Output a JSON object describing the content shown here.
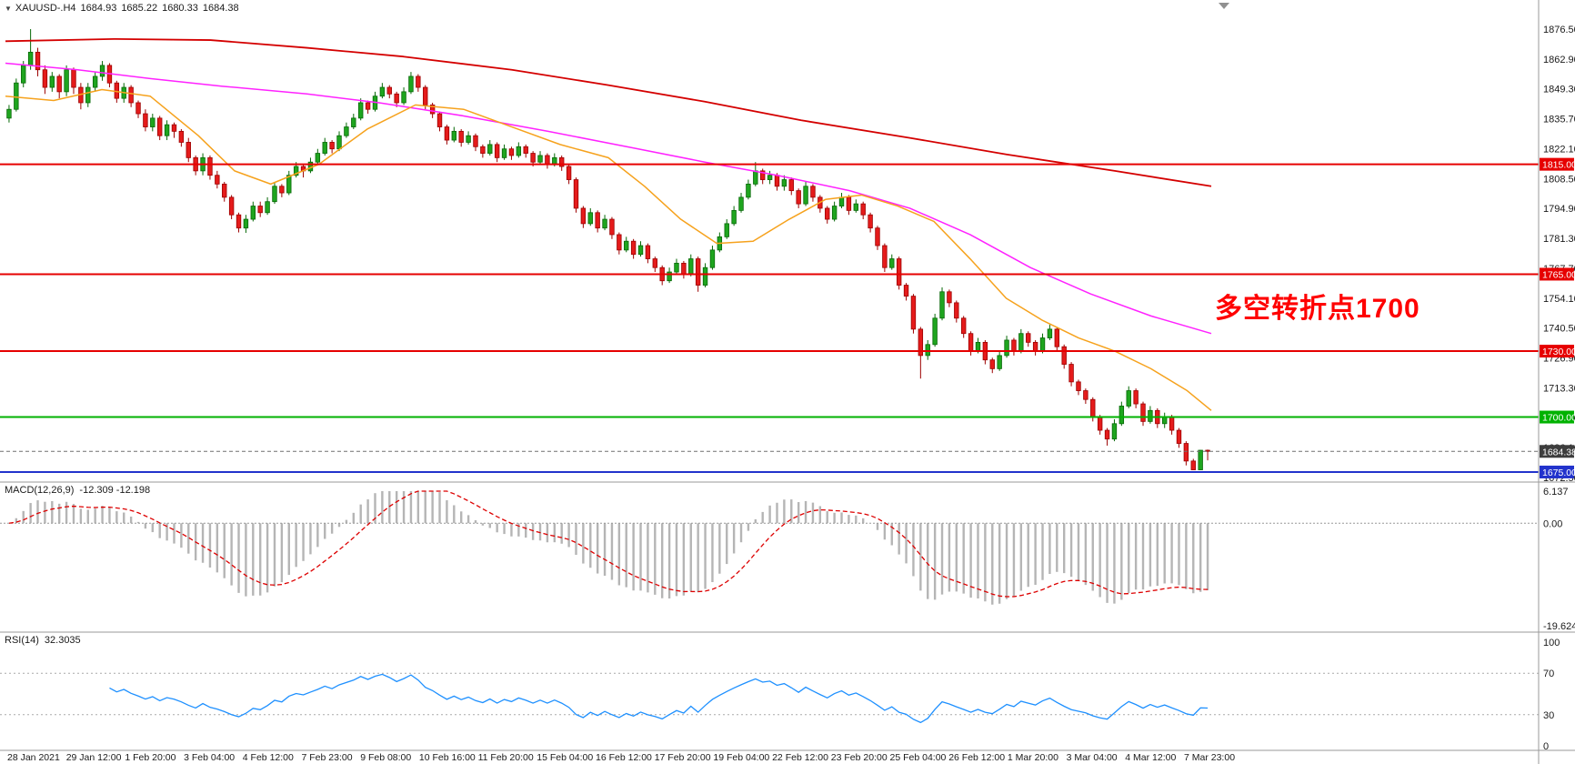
{
  "header": {
    "dropdown_icon": "▼",
    "symbol": "XAUUSD-.H4",
    "open": "1684.93",
    "high": "1685.22",
    "low": "1680.33",
    "close": "1684.38"
  },
  "chart_data": {
    "type": "candlestick",
    "symbol": "XAUUSD",
    "timeframe": "H4",
    "title": "XAUUSD-.H4 1684.93 1685.22 1680.33 1684.38",
    "colors": {
      "up_fill": "#1fa51f",
      "up_stroke": "#066806",
      "down_fill": "#e51b1b",
      "down_stroke": "#9c0000",
      "grid_text": "#1a1a1a",
      "separator": "#9a9a9a",
      "macd_bar": "#b5b5b5",
      "macd_signal": "#dd0000",
      "rsi_line": "#1e90ff",
      "bid_line": "#707070",
      "bid_badge": "#3d3d3d"
    },
    "y_axis": {
      "max": 1876.5,
      "min": 1672.5,
      "labels": [
        "1876.50",
        "1862.90",
        "1849.30",
        "1835.70",
        "1822.10",
        "1808.50",
        "1794.90",
        "1781.30",
        "1767.70",
        "1754.10",
        "1740.50",
        "1726.90",
        "1713.30",
        "1699.70",
        "1686.10",
        "1672.50"
      ]
    },
    "x_labels": [
      "28 Jan 2021",
      "29 Jan 12:00",
      "1 Feb 20:00",
      "3 Feb 04:00",
      "4 Feb 12:00",
      "7 Feb 23:00",
      "9 Feb 08:00",
      "10 Feb 16:00",
      "11 Feb 20:00",
      "15 Feb 04:00",
      "16 Feb 12:00",
      "17 Feb 20:00",
      "19 Feb 04:00",
      "22 Feb 12:00",
      "23 Feb 20:00",
      "25 Feb 04:00",
      "26 Feb 12:00",
      "1 Mar 20:00",
      "3 Mar 04:00",
      "4 Mar 12:00",
      "7 Mar 23:00"
    ],
    "levels": [
      {
        "price": 1815.0,
        "label": "1815.00",
        "color": "#e60000"
      },
      {
        "price": 1765.0,
        "label": "1765.00",
        "color": "#e60000"
      },
      {
        "price": 1730.0,
        "label": "1730.00",
        "color": "#e60000"
      },
      {
        "price": 1700.0,
        "label": "1700.00",
        "color": "#00b200"
      },
      {
        "price": 1675.0,
        "label": "1675.00",
        "color": "#2233cc"
      }
    ],
    "bid": {
      "price": 1684.38,
      "label": "1684.38"
    },
    "annotation": {
      "text": "多空转折点1700",
      "color": "#ff0000"
    },
    "moving_averages": [
      {
        "name": "slow",
        "color": "#d40000",
        "width": 1.8,
        "points": [
          [
            0,
            1871
          ],
          [
            0.09,
            1872
          ],
          [
            0.17,
            1871.5
          ],
          [
            0.25,
            1868
          ],
          [
            0.33,
            1864
          ],
          [
            0.42,
            1858
          ],
          [
            0.5,
            1851
          ],
          [
            0.58,
            1843.5
          ],
          [
            0.66,
            1835
          ],
          [
            0.75,
            1827
          ],
          [
            0.83,
            1819.5
          ],
          [
            0.92,
            1812
          ],
          [
            1,
            1805
          ]
        ]
      },
      {
        "name": "mid",
        "color": "#ff22ff",
        "width": 1.5,
        "points": [
          [
            0,
            1861
          ],
          [
            0.06,
            1858
          ],
          [
            0.12,
            1854
          ],
          [
            0.18,
            1850.5
          ],
          [
            0.25,
            1847
          ],
          [
            0.31,
            1843
          ],
          [
            0.38,
            1837
          ],
          [
            0.45,
            1830
          ],
          [
            0.52,
            1822.5
          ],
          [
            0.58,
            1816
          ],
          [
            0.64,
            1810
          ],
          [
            0.7,
            1803
          ],
          [
            0.75,
            1795
          ],
          [
            0.8,
            1783
          ],
          [
            0.85,
            1768
          ],
          [
            0.9,
            1756
          ],
          [
            0.95,
            1746
          ],
          [
            1,
            1738
          ]
        ]
      },
      {
        "name": "fast",
        "color": "#f6a21d",
        "width": 1.5,
        "points": [
          [
            0,
            1846
          ],
          [
            0.04,
            1844
          ],
          [
            0.08,
            1849
          ],
          [
            0.12,
            1846
          ],
          [
            0.16,
            1828
          ],
          [
            0.19,
            1812
          ],
          [
            0.22,
            1806
          ],
          [
            0.26,
            1815
          ],
          [
            0.3,
            1831
          ],
          [
            0.34,
            1842
          ],
          [
            0.38,
            1840
          ],
          [
            0.42,
            1832
          ],
          [
            0.46,
            1824
          ],
          [
            0.5,
            1818
          ],
          [
            0.53,
            1805
          ],
          [
            0.56,
            1790
          ],
          [
            0.59,
            1779
          ],
          [
            0.62,
            1780
          ],
          [
            0.65,
            1790
          ],
          [
            0.68,
            1799
          ],
          [
            0.71,
            1801
          ],
          [
            0.74,
            1796
          ],
          [
            0.77,
            1789
          ],
          [
            0.8,
            1772
          ],
          [
            0.83,
            1754
          ],
          [
            0.86,
            1744
          ],
          [
            0.89,
            1736
          ],
          [
            0.92,
            1730
          ],
          [
            0.95,
            1722
          ],
          [
            0.98,
            1712
          ],
          [
            1,
            1703
          ]
        ]
      }
    ],
    "indicators": {
      "macd": {
        "label": "MACD(12,26,9)",
        "values_text": "-12.309 -12.198",
        "params": [
          12,
          26,
          9
        ],
        "max": 6.137,
        "min": -19.624,
        "axis_labels": [
          "6.137",
          "0.00",
          "-19.624"
        ]
      },
      "rsi": {
        "label": "RSI(14)",
        "value_text": "32.3035",
        "period": 14,
        "levels": [
          70,
          30
        ],
        "axis_labels": [
          "100",
          "70",
          "30",
          "0"
        ]
      }
    },
    "candles": [
      [
        1836,
        1842,
        1834,
        1840
      ],
      [
        1840,
        1854,
        1839,
        1852
      ],
      [
        1852,
        1862,
        1850,
        1860
      ],
      [
        1860,
        1876.5,
        1858,
        1866
      ],
      [
        1866,
        1868,
        1855,
        1858
      ],
      [
        1858,
        1860,
        1847,
        1850
      ],
      [
        1850,
        1857,
        1848,
        1855
      ],
      [
        1855,
        1856,
        1845,
        1848
      ],
      [
        1848,
        1860,
        1846,
        1858
      ],
      [
        1858,
        1859,
        1847,
        1850
      ],
      [
        1850,
        1852,
        1840,
        1843
      ],
      [
        1843,
        1852,
        1841,
        1850
      ],
      [
        1850,
        1857,
        1848,
        1855
      ],
      [
        1855,
        1862,
        1853,
        1860
      ],
      [
        1860,
        1861,
        1850,
        1852
      ],
      [
        1852,
        1853,
        1843,
        1845
      ],
      [
        1845,
        1852,
        1843,
        1850
      ],
      [
        1850,
        1851,
        1841,
        1843
      ],
      [
        1843,
        1844,
        1836,
        1838
      ],
      [
        1838,
        1840,
        1830,
        1832
      ],
      [
        1832,
        1838,
        1830,
        1836
      ],
      [
        1836,
        1837,
        1826,
        1828
      ],
      [
        1828,
        1835,
        1826,
        1833
      ],
      [
        1833,
        1834,
        1827,
        1830
      ],
      [
        1830,
        1831,
        1823,
        1825
      ],
      [
        1825,
        1827,
        1816,
        1818
      ],
      [
        1818,
        1819,
        1810,
        1812
      ],
      [
        1812,
        1820,
        1810,
        1818
      ],
      [
        1818,
        1819,
        1808,
        1810
      ],
      [
        1810,
        1812,
        1804,
        1806
      ],
      [
        1806,
        1807,
        1798,
        1800
      ],
      [
        1800,
        1801,
        1790,
        1792
      ],
      [
        1792,
        1793,
        1784,
        1786
      ],
      [
        1786,
        1792,
        1783.8,
        1790
      ],
      [
        1790,
        1798,
        1789,
        1796
      ],
      [
        1796,
        1798,
        1791,
        1793
      ],
      [
        1793,
        1800,
        1792,
        1798
      ],
      [
        1798,
        1807,
        1797,
        1805
      ],
      [
        1805,
        1806,
        1800,
        1802
      ],
      [
        1802,
        1812,
        1801,
        1810
      ],
      [
        1810,
        1816,
        1809,
        1814
      ],
      [
        1814,
        1815,
        1809,
        1812
      ],
      [
        1812,
        1818,
        1811,
        1816
      ],
      [
        1816,
        1822,
        1815,
        1820
      ],
      [
        1820,
        1827,
        1819,
        1825
      ],
      [
        1825,
        1826,
        1820,
        1822
      ],
      [
        1822,
        1830,
        1821,
        1828
      ],
      [
        1828,
        1834,
        1827,
        1832
      ],
      [
        1832,
        1838,
        1831,
        1836
      ],
      [
        1836,
        1845,
        1835,
        1843
      ],
      [
        1843,
        1844,
        1838,
        1840
      ],
      [
        1840,
        1848,
        1839,
        1846
      ],
      [
        1846,
        1852,
        1845,
        1850
      ],
      [
        1850,
        1851,
        1845,
        1847
      ],
      [
        1847,
        1848,
        1841,
        1843
      ],
      [
        1843,
        1850,
        1842,
        1848
      ],
      [
        1848,
        1857,
        1847,
        1855
      ],
      [
        1855,
        1856,
        1848,
        1850
      ],
      [
        1850,
        1851,
        1840,
        1842
      ],
      [
        1842,
        1843,
        1836,
        1838
      ],
      [
        1838,
        1839,
        1830,
        1832
      ],
      [
        1832,
        1833,
        1824,
        1826
      ],
      [
        1826,
        1832,
        1825,
        1830
      ],
      [
        1830,
        1831,
        1823,
        1825
      ],
      [
        1825,
        1830,
        1824,
        1828
      ],
      [
        1828,
        1829,
        1821,
        1823
      ],
      [
        1823,
        1824,
        1818,
        1820
      ],
      [
        1820,
        1826,
        1819,
        1824
      ],
      [
        1824,
        1825,
        1816,
        1818
      ],
      [
        1818,
        1824,
        1817,
        1822
      ],
      [
        1822,
        1823,
        1817,
        1819
      ],
      [
        1819,
        1825,
        1818,
        1823
      ],
      [
        1823,
        1824,
        1818,
        1820
      ],
      [
        1820,
        1821,
        1814,
        1816
      ],
      [
        1816,
        1821,
        1815,
        1819
      ],
      [
        1819,
        1820,
        1813,
        1815
      ],
      [
        1815,
        1820,
        1814,
        1818
      ],
      [
        1818,
        1819,
        1812,
        1814
      ],
      [
        1814,
        1815,
        1806,
        1808
      ],
      [
        1808,
        1809,
        1793,
        1795
      ],
      [
        1795,
        1796,
        1786,
        1788
      ],
      [
        1788,
        1795,
        1787,
        1793
      ],
      [
        1793,
        1794,
        1784,
        1786
      ],
      [
        1786,
        1792,
        1785,
        1790
      ],
      [
        1790,
        1791,
        1781,
        1783
      ],
      [
        1783,
        1784,
        1774,
        1776
      ],
      [
        1776,
        1782,
        1775,
        1780
      ],
      [
        1780,
        1781,
        1772,
        1774
      ],
      [
        1774,
        1780,
        1773,
        1778
      ],
      [
        1778,
        1779,
        1770,
        1772
      ],
      [
        1772,
        1773,
        1766,
        1768
      ],
      [
        1768,
        1769,
        1760,
        1762
      ],
      [
        1762,
        1768,
        1761,
        1766
      ],
      [
        1766,
        1772,
        1765,
        1770
      ],
      [
        1770,
        1771,
        1763,
        1765
      ],
      [
        1765,
        1774,
        1764,
        1772
      ],
      [
        1772,
        1773,
        1757,
        1760
      ],
      [
        1760,
        1770,
        1759,
        1768
      ],
      [
        1768,
        1778,
        1767,
        1776
      ],
      [
        1776,
        1784,
        1775,
        1782
      ],
      [
        1782,
        1790,
        1781,
        1788
      ],
      [
        1788,
        1796,
        1787,
        1794
      ],
      [
        1794,
        1802,
        1793,
        1800
      ],
      [
        1800,
        1808,
        1799,
        1806
      ],
      [
        1806,
        1816,
        1805,
        1812
      ],
      [
        1812,
        1813,
        1806,
        1808
      ],
      [
        1808,
        1812,
        1806,
        1810
      ],
      [
        1810,
        1811,
        1803,
        1805
      ],
      [
        1805,
        1810,
        1803,
        1808
      ],
      [
        1808,
        1809,
        1801,
        1803
      ],
      [
        1803,
        1804,
        1795,
        1797
      ],
      [
        1797,
        1807,
        1796,
        1805
      ],
      [
        1805,
        1806,
        1798,
        1800
      ],
      [
        1800,
        1801,
        1793,
        1795
      ],
      [
        1795,
        1796,
        1788,
        1790
      ],
      [
        1790,
        1798,
        1789,
        1796
      ],
      [
        1796,
        1802,
        1795,
        1800
      ],
      [
        1800,
        1801,
        1792,
        1794
      ],
      [
        1794,
        1799,
        1793,
        1797
      ],
      [
        1797,
        1798,
        1790,
        1792
      ],
      [
        1792,
        1793,
        1784,
        1786
      ],
      [
        1786,
        1787,
        1776,
        1778
      ],
      [
        1778,
        1779,
        1766,
        1768
      ],
      [
        1768,
        1774,
        1767,
        1772
      ],
      [
        1772,
        1773,
        1758,
        1760
      ],
      [
        1760,
        1761,
        1753,
        1755
      ],
      [
        1755,
        1756,
        1738,
        1740
      ],
      [
        1740,
        1741,
        1717.5,
        1728
      ],
      [
        1728,
        1735,
        1726,
        1733
      ],
      [
        1733,
        1747,
        1732,
        1745
      ],
      [
        1745,
        1759,
        1744,
        1757
      ],
      [
        1757,
        1758,
        1750,
        1752
      ],
      [
        1752,
        1753,
        1743,
        1745
      ],
      [
        1745,
        1746,
        1736,
        1738
      ],
      [
        1738,
        1739,
        1728,
        1730
      ],
      [
        1730,
        1736,
        1729,
        1734
      ],
      [
        1734,
        1735,
        1724,
        1726
      ],
      [
        1726,
        1727,
        1720,
        1722
      ],
      [
        1722,
        1730,
        1721,
        1728
      ],
      [
        1728,
        1737,
        1727,
        1735
      ],
      [
        1735,
        1736,
        1728,
        1730
      ],
      [
        1730,
        1740,
        1729,
        1738
      ],
      [
        1738,
        1739,
        1732,
        1734
      ],
      [
        1734,
        1735,
        1728,
        1730
      ],
      [
        1730,
        1738,
        1729,
        1736
      ],
      [
        1736,
        1742,
        1735,
        1740
      ],
      [
        1740,
        1741,
        1730,
        1732
      ],
      [
        1732,
        1733,
        1722,
        1724
      ],
      [
        1724,
        1725,
        1714,
        1716
      ],
      [
        1716,
        1717,
        1710,
        1712
      ],
      [
        1712,
        1713,
        1706,
        1708
      ],
      [
        1708,
        1709,
        1698,
        1700
      ],
      [
        1700,
        1701,
        1692,
        1694
      ],
      [
        1694,
        1695,
        1687,
        1690
      ],
      [
        1690,
        1699,
        1689,
        1697
      ],
      [
        1697,
        1707,
        1696,
        1705
      ],
      [
        1705,
        1714,
        1704,
        1712
      ],
      [
        1712,
        1713,
        1704,
        1706
      ],
      [
        1706,
        1707,
        1696,
        1698
      ],
      [
        1698,
        1705,
        1697,
        1703
      ],
      [
        1703,
        1704,
        1695,
        1697
      ],
      [
        1697,
        1702,
        1695,
        1700
      ],
      [
        1700,
        1701,
        1692,
        1694
      ],
      [
        1694,
        1695,
        1686,
        1688
      ],
      [
        1688,
        1689,
        1678,
        1680
      ],
      [
        1680,
        1681,
        1675.9,
        1676
      ],
      [
        1676,
        1685,
        1675.9,
        1684.9
      ],
      [
        1684.9,
        1685.2,
        1680.3,
        1684.4
      ]
    ]
  }
}
